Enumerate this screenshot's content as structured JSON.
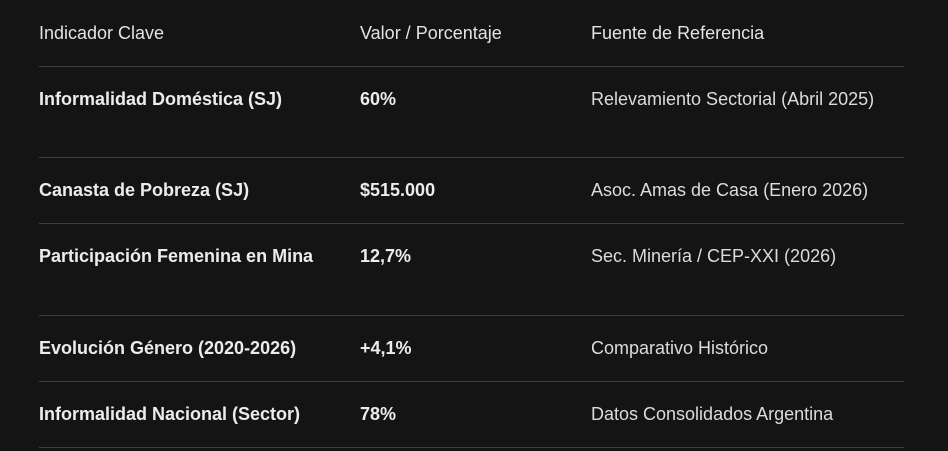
{
  "table": {
    "headers": [
      "Indicador Clave",
      "Valor / Porcentaje",
      "Fuente de Referencia"
    ],
    "rows": [
      {
        "indicator": "Informalidad Doméstica (SJ)",
        "value": "60%",
        "source": "Relevamiento Sectorial (Abril 2025)"
      },
      {
        "indicator": "Canasta de Pobreza (SJ)",
        "value": "$515.000",
        "source": "Asoc. Amas de Casa (Enero 2026)"
      },
      {
        "indicator": "Participación Femenina en Mina",
        "value": "12,7%",
        "source": "Sec. Minería / CEP-XXI (2026)"
      },
      {
        "indicator": "Evolución Género (2020-2026)",
        "value": "+4,1%",
        "source": "Comparativo Histórico"
      },
      {
        "indicator": "Informalidad Nacional (Sector)",
        "value": "78%",
        "source": "Datos Consolidados Argentina"
      }
    ]
  }
}
